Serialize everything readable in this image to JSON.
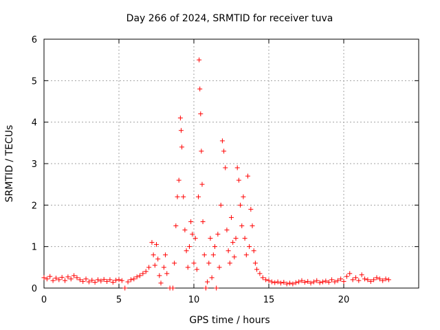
{
  "chart_data": {
    "type": "scatter",
    "title": "Day 266 of 2024, SRMTID for receiver tuva",
    "xlabel": "GPS time / hours",
    "ylabel": "SRMTID / TECUs",
    "xlim": [
      0,
      25
    ],
    "ylim": [
      0,
      6
    ],
    "xticks": [
      0,
      5,
      10,
      15,
      20
    ],
    "yticks": [
      0,
      1,
      2,
      3,
      4,
      5,
      6
    ],
    "grid": true,
    "marker": "plus",
    "color": "#ff0000",
    "series": [
      {
        "name": "SRMTID",
        "points": [
          [
            0.0,
            0.25
          ],
          [
            0.2,
            0.22
          ],
          [
            0.4,
            0.28
          ],
          [
            0.6,
            0.18
          ],
          [
            0.8,
            0.24
          ],
          [
            1.0,
            0.2
          ],
          [
            1.2,
            0.26
          ],
          [
            1.4,
            0.18
          ],
          [
            1.6,
            0.27
          ],
          [
            1.8,
            0.22
          ],
          [
            2.0,
            0.3
          ],
          [
            2.2,
            0.25
          ],
          [
            2.4,
            0.2
          ],
          [
            2.6,
            0.16
          ],
          [
            2.8,
            0.22
          ],
          [
            3.0,
            0.15
          ],
          [
            3.2,
            0.19
          ],
          [
            3.4,
            0.14
          ],
          [
            3.6,
            0.2
          ],
          [
            3.8,
            0.17
          ],
          [
            4.0,
            0.21
          ],
          [
            4.2,
            0.16
          ],
          [
            4.4,
            0.2
          ],
          [
            4.6,
            0.14
          ],
          [
            4.8,
            0.19
          ],
          [
            5.0,
            0.2
          ],
          [
            5.2,
            0.18
          ],
          [
            5.4,
            0.0
          ],
          [
            5.6,
            0.15
          ],
          [
            5.8,
            0.2
          ],
          [
            6.0,
            0.22
          ],
          [
            6.2,
            0.27
          ],
          [
            6.4,
            0.3
          ],
          [
            6.6,
            0.35
          ],
          [
            6.8,
            0.4
          ],
          [
            7.0,
            0.5
          ],
          [
            7.2,
            1.1
          ],
          [
            7.3,
            0.8
          ],
          [
            7.4,
            0.55
          ],
          [
            7.5,
            1.05
          ],
          [
            7.6,
            0.7
          ],
          [
            7.7,
            0.3
          ],
          [
            7.8,
            0.12
          ],
          [
            8.0,
            0.5
          ],
          [
            8.1,
            0.8
          ],
          [
            8.2,
            0.35
          ],
          [
            8.4,
            0.0
          ],
          [
            8.6,
            0.0
          ],
          [
            8.7,
            0.6
          ],
          [
            8.8,
            1.5
          ],
          [
            8.9,
            2.2
          ],
          [
            9.0,
            2.6
          ],
          [
            9.1,
            4.1
          ],
          [
            9.15,
            3.8
          ],
          [
            9.2,
            3.4
          ],
          [
            9.3,
            2.2
          ],
          [
            9.4,
            1.4
          ],
          [
            9.5,
            0.9
          ],
          [
            9.6,
            0.5
          ],
          [
            9.7,
            1.0
          ],
          [
            9.8,
            1.6
          ],
          [
            9.9,
            1.3
          ],
          [
            10.0,
            0.6
          ],
          [
            10.1,
            1.2
          ],
          [
            10.2,
            0.45
          ],
          [
            10.3,
            2.2
          ],
          [
            10.35,
            5.5
          ],
          [
            10.4,
            4.8
          ],
          [
            10.45,
            4.2
          ],
          [
            10.5,
            3.3
          ],
          [
            10.55,
            2.5
          ],
          [
            10.6,
            1.6
          ],
          [
            10.7,
            0.8
          ],
          [
            10.8,
            0.0
          ],
          [
            10.9,
            0.15
          ],
          [
            11.0,
            0.6
          ],
          [
            11.1,
            1.2
          ],
          [
            11.2,
            0.25
          ],
          [
            11.3,
            0.8
          ],
          [
            11.4,
            1.0
          ],
          [
            11.5,
            0.0
          ],
          [
            11.6,
            1.3
          ],
          [
            11.7,
            0.5
          ],
          [
            11.8,
            2.0
          ],
          [
            11.9,
            3.55
          ],
          [
            12.0,
            3.3
          ],
          [
            12.1,
            2.9
          ],
          [
            12.2,
            1.4
          ],
          [
            12.3,
            0.9
          ],
          [
            12.4,
            0.6
          ],
          [
            12.5,
            1.7
          ],
          [
            12.6,
            1.1
          ],
          [
            12.7,
            0.75
          ],
          [
            12.8,
            1.2
          ],
          [
            12.9,
            2.9
          ],
          [
            13.0,
            2.6
          ],
          [
            13.1,
            2.0
          ],
          [
            13.2,
            1.5
          ],
          [
            13.3,
            2.2
          ],
          [
            13.4,
            1.2
          ],
          [
            13.5,
            0.8
          ],
          [
            13.6,
            2.7
          ],
          [
            13.7,
            1.0
          ],
          [
            13.8,
            1.9
          ],
          [
            13.9,
            1.5
          ],
          [
            14.0,
            0.9
          ],
          [
            14.1,
            0.6
          ],
          [
            14.2,
            0.45
          ],
          [
            14.4,
            0.35
          ],
          [
            14.6,
            0.25
          ],
          [
            14.8,
            0.2
          ],
          [
            15.0,
            0.18
          ],
          [
            15.2,
            0.15
          ],
          [
            15.4,
            0.13
          ],
          [
            15.6,
            0.15
          ],
          [
            15.8,
            0.12
          ],
          [
            16.0,
            0.14
          ],
          [
            16.2,
            0.1
          ],
          [
            16.4,
            0.12
          ],
          [
            16.6,
            0.1
          ],
          [
            16.8,
            0.13
          ],
          [
            17.0,
            0.15
          ],
          [
            17.2,
            0.18
          ],
          [
            17.4,
            0.14
          ],
          [
            17.6,
            0.16
          ],
          [
            17.8,
            0.12
          ],
          [
            18.0,
            0.15
          ],
          [
            18.2,
            0.18
          ],
          [
            18.4,
            0.13
          ],
          [
            18.6,
            0.15
          ],
          [
            18.8,
            0.17
          ],
          [
            19.0,
            0.14
          ],
          [
            19.2,
            0.2
          ],
          [
            19.4,
            0.15
          ],
          [
            19.6,
            0.18
          ],
          [
            19.8,
            0.22
          ],
          [
            20.0,
            0.16
          ],
          [
            20.2,
            0.28
          ],
          [
            20.4,
            0.35
          ],
          [
            20.6,
            0.2
          ],
          [
            20.8,
            0.25
          ],
          [
            21.0,
            0.18
          ],
          [
            21.2,
            0.32
          ],
          [
            21.4,
            0.22
          ],
          [
            21.6,
            0.2
          ],
          [
            21.8,
            0.16
          ],
          [
            22.0,
            0.2
          ],
          [
            22.2,
            0.25
          ],
          [
            22.4,
            0.22
          ],
          [
            22.6,
            0.18
          ],
          [
            22.8,
            0.22
          ],
          [
            23.0,
            0.2
          ]
        ]
      }
    ]
  }
}
